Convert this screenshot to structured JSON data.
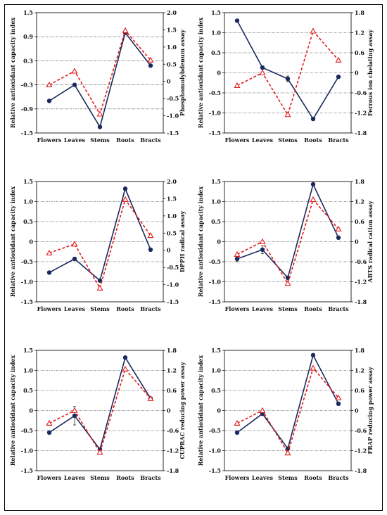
{
  "chart_data": [
    {
      "type": "line",
      "categories": [
        "Flowers",
        "Leaves",
        "Stems",
        "Roots",
        "Bracts"
      ],
      "ylabel": "Relative antioxidant capacity index",
      "ylabel_right": "Phosphomolybdenum assay",
      "ylim": [
        -1.5,
        1.5
      ],
      "yticks": [
        "-1.5",
        "-0.9",
        "-0.3",
        "0.3",
        "0.9",
        "1.5"
      ],
      "y2lim": [
        -1.5,
        2.0
      ],
      "y2ticks": [
        "-1.5",
        "-1.0",
        "-0.5",
        "0",
        "0.5",
        "1.0",
        "1.5",
        "2.0"
      ],
      "grid": [
        -0.9,
        -0.3,
        0.3,
        0.9
      ],
      "series": [
        {
          "axis": "left",
          "style": "solid-circle",
          "color": "#1a2a5e",
          "values": [
            -0.7,
            -0.3,
            -1.35,
            1.0,
            0.18
          ]
        },
        {
          "axis": "right",
          "style": "dashed-triangle",
          "color": "#e31b1b",
          "values": [
            -0.1,
            0.3,
            -0.95,
            1.48,
            0.62
          ]
        }
      ]
    },
    {
      "type": "line",
      "categories": [
        "Flowers",
        "Leaves",
        "Stems",
        "Roots",
        "Bracts"
      ],
      "ylabel": "Relative antioxidant capacity index",
      "ylabel_right": "Ferrous ion chelating assay",
      "ylim": [
        -1.5,
        1.5
      ],
      "yticks": [
        "-1.5",
        "-1.0",
        "-0.5",
        "0",
        "0.5",
        "1.0",
        "1.5"
      ],
      "y2lim": [
        -1.8,
        1.8
      ],
      "y2ticks": [
        "-1.8",
        "-1.2",
        "-0.6",
        "0",
        "0.6",
        "1.2",
        "1.8"
      ],
      "grid": [
        -1.0,
        -0.5,
        0,
        0.5,
        1.0
      ],
      "series": [
        {
          "axis": "left",
          "style": "solid-circle",
          "color": "#1a2a5e",
          "values": [
            1.3,
            0.13,
            -0.15,
            -1.15,
            -0.1
          ],
          "errors": [
            0,
            0,
            0.07,
            0,
            0
          ]
        },
        {
          "axis": "right",
          "style": "dashed-triangle",
          "color": "#e31b1b",
          "values": [
            -0.38,
            0.0,
            -1.25,
            1.25,
            0.38
          ]
        }
      ]
    },
    {
      "type": "line",
      "categories": [
        "Flowers",
        "Leaves",
        "Stems",
        "Roots",
        "Bracts"
      ],
      "ylabel": "Relative antioxidant capacity index",
      "ylabel_right": "DPPH radical assay",
      "ylim": [
        -1.5,
        1.5
      ],
      "yticks": [
        "-1.5",
        "-1.0",
        "-0.5",
        "0",
        "0.5",
        "1.0",
        "1.5"
      ],
      "y2lim": [
        -1.5,
        2.0
      ],
      "y2ticks": [
        "-1.5",
        "-1.0",
        "-0.5",
        "0",
        "0.5",
        "1.0",
        "1.5",
        "2.0"
      ],
      "grid": [
        -1.0,
        -0.5,
        0,
        0.5,
        1.0
      ],
      "series": [
        {
          "axis": "left",
          "style": "solid-circle",
          "color": "#1a2a5e",
          "values": [
            -0.77,
            -0.43,
            -0.97,
            1.32,
            -0.2
          ]
        },
        {
          "axis": "right",
          "style": "dashed-triangle",
          "color": "#e31b1b",
          "values": [
            -0.08,
            0.18,
            -1.1,
            1.48,
            0.43
          ]
        }
      ]
    },
    {
      "type": "line",
      "categories": [
        "Flowers",
        "Leaves",
        "Stems",
        "Roots",
        "Bracts"
      ],
      "ylabel": "Relative antioxidant capacity index",
      "ylabel_right": "ABTS radical cation assay",
      "ylim": [
        -1.5,
        1.5
      ],
      "yticks": [
        "-1.5",
        "-1.0",
        "-0.5",
        "0",
        "0.5",
        "1.0",
        "1.5"
      ],
      "y2lim": [
        -1.8,
        1.8
      ],
      "y2ticks": [
        "-1.8",
        "-1.2",
        "-0.6",
        "0",
        "0.6",
        "1.2",
        "1.8"
      ],
      "grid": [
        -1.0,
        -0.5,
        0,
        0.5,
        1.0
      ],
      "series": [
        {
          "axis": "left",
          "style": "solid-circle",
          "color": "#1a2a5e",
          "values": [
            -0.43,
            -0.2,
            -0.9,
            1.43,
            0.1
          ],
          "errors": [
            0.07,
            0.1,
            0,
            0,
            0
          ]
        },
        {
          "axis": "right",
          "style": "dashed-triangle",
          "color": "#e31b1b",
          "values": [
            -0.38,
            0.0,
            -1.25,
            1.26,
            0.38
          ]
        }
      ]
    },
    {
      "type": "line",
      "categories": [
        "Flowers",
        "Leaves",
        "Stems",
        "Roots",
        "Bracts"
      ],
      "ylabel": "Relative antioxidant capacity index",
      "ylabel_right": "CUPRAC reducing power assay",
      "ylim": [
        -1.5,
        1.5
      ],
      "yticks": [
        "-1.5",
        "-1.0",
        "-0.5",
        "0",
        "0.5",
        "1.0",
        "1.5"
      ],
      "y2lim": [
        -1.8,
        1.8
      ],
      "y2ticks": [
        "-1.8",
        "-1.2",
        "-0.6",
        "0",
        "0.6",
        "1.2",
        "1.8"
      ],
      "grid": [
        -1.0,
        -0.5,
        0,
        0.5,
        1.0
      ],
      "series": [
        {
          "axis": "left",
          "style": "solid-circle",
          "color": "#1a2a5e",
          "values": [
            -0.55,
            -0.13,
            -0.97,
            1.32,
            0.3
          ],
          "errors": [
            0,
            0.23,
            0,
            0,
            0
          ]
        },
        {
          "axis": "right",
          "style": "dashed-triangle",
          "color": "#e31b1b",
          "values": [
            -0.38,
            0.0,
            -1.25,
            1.24,
            0.36
          ]
        }
      ]
    },
    {
      "type": "line",
      "categories": [
        "Flowers",
        "Leaves",
        "Stems",
        "Roots",
        "Bracts"
      ],
      "ylabel": "Relative antioxidant capacity index",
      "ylabel_right": "FRAP reducing power assay",
      "ylim": [
        -1.5,
        1.5
      ],
      "yticks": [
        "-1.5",
        "-1.0",
        "-0.5",
        "0",
        "0.5",
        "1.0",
        "1.5"
      ],
      "y2lim": [
        -1.8,
        1.8
      ],
      "y2ticks": [
        "-1.8",
        "-1.2",
        "-0.6",
        "0",
        "0.6",
        "1.2",
        "1.8"
      ],
      "grid": [
        -1.0,
        -0.5,
        0,
        0.5,
        1.0
      ],
      "series": [
        {
          "axis": "left",
          "style": "solid-circle",
          "color": "#1a2a5e",
          "values": [
            -0.55,
            -0.08,
            -0.95,
            1.38,
            0.17
          ]
        },
        {
          "axis": "right",
          "style": "dashed-triangle",
          "color": "#e31b1b",
          "values": [
            -0.38,
            0.0,
            -1.27,
            1.27,
            0.38
          ]
        }
      ]
    }
  ]
}
